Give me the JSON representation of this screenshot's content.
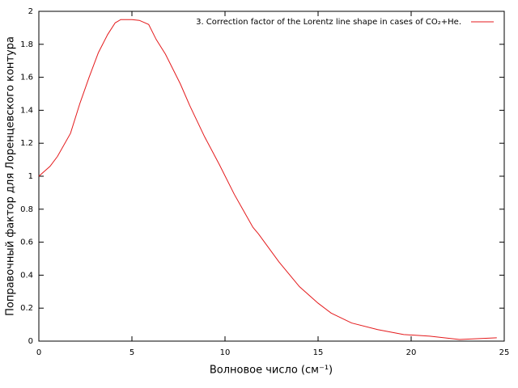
{
  "chart_data": {
    "type": "line",
    "x_label": "Волновое число (см⁻¹)",
    "y_label": "Поправочный фактор для Лоренцевского контура",
    "x": [
      0,
      0.6,
      1,
      1.7,
      2.2,
      2.7,
      3.2,
      3.7,
      4.1,
      4.4,
      5,
      5.4,
      5.9,
      6.3,
      6.8,
      7.6,
      8.1,
      8.9,
      9.7,
      10.5,
      11.5,
      11.8,
      12.9,
      14,
      15,
      15.7,
      16.8,
      18.2,
      19.6,
      21,
      22.6,
      24.6
    ],
    "series": [
      {
        "name": "3. Correction factor of the Lorentz line shape in cases of CO₂+He.",
        "color": "#e41a1c",
        "values": [
          1.0,
          1.06,
          1.12,
          1.26,
          1.44,
          1.6,
          1.75,
          1.86,
          1.93,
          1.95,
          1.95,
          1.945,
          1.92,
          1.83,
          1.74,
          1.56,
          1.43,
          1.24,
          1.07,
          0.89,
          0.69,
          0.65,
          0.48,
          0.33,
          0.23,
          0.17,
          0.11,
          0.07,
          0.04,
          0.03,
          0.01,
          0.02
        ]
      }
    ],
    "xlim": [
      0,
      25
    ],
    "xticks": [
      0,
      5,
      10,
      15,
      20,
      25
    ],
    "ylim": [
      0,
      2
    ],
    "yticks": [
      0,
      0.2,
      0.4,
      0.6,
      0.8,
      1,
      1.2,
      1.4,
      1.6,
      1.8,
      2
    ],
    "legend": "top-right"
  }
}
